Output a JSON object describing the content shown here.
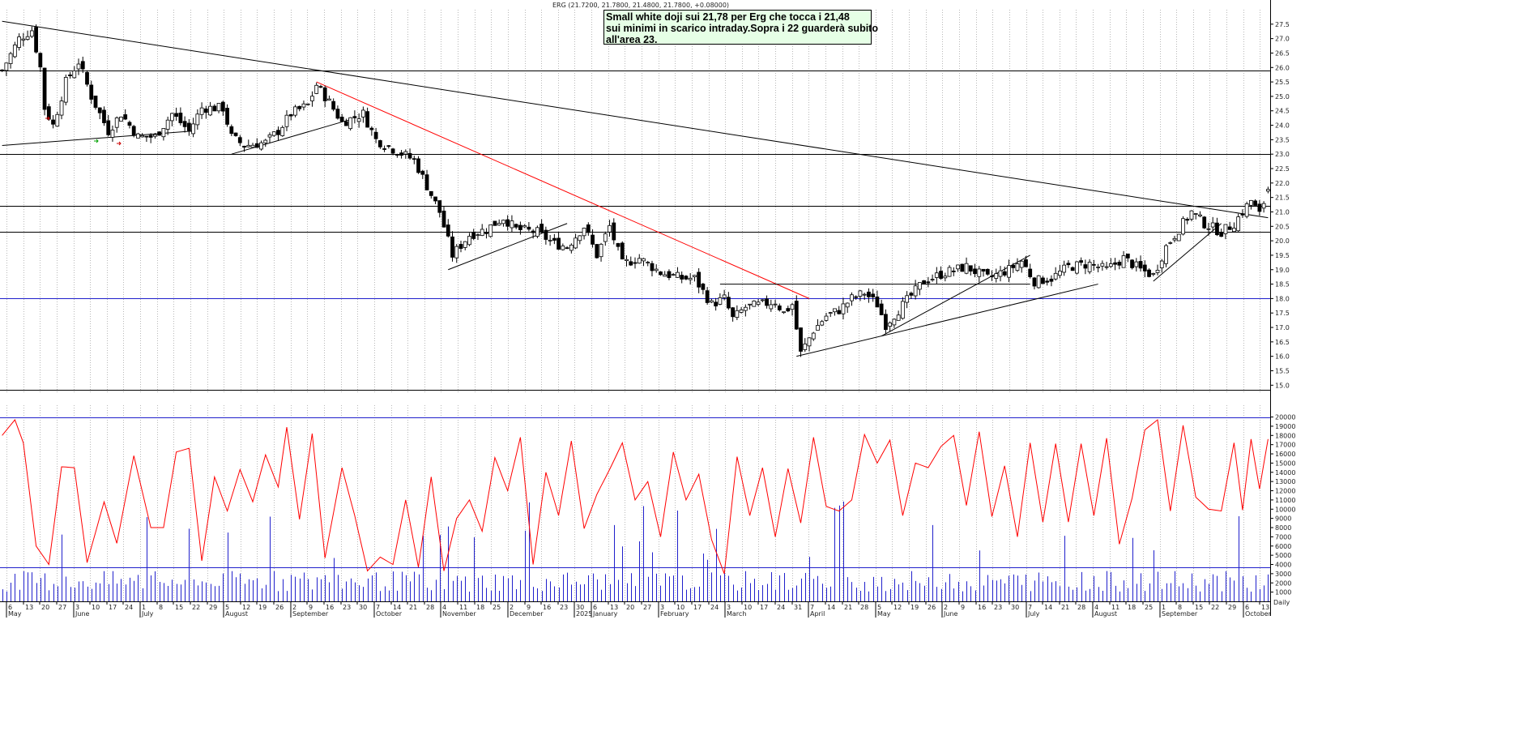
{
  "chart_data": {
    "type": "candlestick",
    "header": "ERG (21.7200, 21.7800, 21.4800, 21.7800, +0.08000)",
    "annotation": [
      "Small white doji sui 21,78 per Erg che tocca i 21,48",
      "sui minimi in scarico intraday.Sopra i 22 guarderà subito",
      "all'area 23."
    ],
    "price_axis": {
      "ylim": [
        14.7,
        28.0
      ],
      "ticks": [
        "15.0",
        "15.5",
        "16.0",
        "16.5",
        "17.0",
        "17.5",
        "18.0",
        "18.5",
        "19.0",
        "19.5",
        "20.0",
        "20.5",
        "21.0",
        "21.5",
        "22.0",
        "22.5",
        "23.0",
        "23.5",
        "24.0",
        "24.5",
        "25.0",
        "25.5",
        "26.0",
        "26.5",
        "27.0",
        "27.5"
      ]
    },
    "volume_axis": {
      "ylim": [
        0,
        20400
      ],
      "ticks": [
        "1000",
        "2000",
        "3000",
        "4000",
        "5000",
        "6000",
        "7000",
        "8000",
        "9000",
        "10000",
        "11000",
        "12000",
        "13000",
        "14000",
        "15000",
        "16000",
        "17000",
        "18000",
        "19000",
        "20000"
      ]
    },
    "x_axis": {
      "day_ticks": [
        "6",
        "13",
        "20",
        "27",
        "3",
        "10",
        "17",
        "24",
        "1",
        "8",
        "15",
        "22",
        "29",
        "5",
        "12",
        "19",
        "26",
        "2",
        "9",
        "16",
        "23",
        "30",
        "7",
        "14",
        "21",
        "28",
        "4",
        "11",
        "18",
        "25",
        "2",
        "9",
        "16",
        "23",
        "30",
        "6",
        "13",
        "20",
        "27",
        "3",
        "10",
        "17",
        "24",
        "3",
        "10",
        "17",
        "24",
        "31",
        "7",
        "14",
        "21",
        "28",
        "5",
        "12",
        "19",
        "26",
        "2",
        "9",
        "16",
        "23",
        "30",
        "7",
        "14",
        "21",
        "28",
        "4",
        "11",
        "18",
        "25",
        "1",
        "8",
        "15",
        "22",
        "29",
        "6",
        "13"
      ],
      "month_labels": [
        "May",
        "June",
        "July",
        "August",
        "September",
        "October",
        "November",
        "December",
        "2025",
        "January",
        "February",
        "March",
        "April",
        "May",
        "June",
        "July",
        "August",
        "September",
        "October"
      ],
      "unit_label": "Daily"
    },
    "horizontal_levels": [
      {
        "value": 25.9,
        "color": "#000000"
      },
      {
        "value": 23.0,
        "color": "#000000"
      },
      {
        "value": 21.2,
        "color": "#000000"
      },
      {
        "value": 20.3,
        "color": "#000000"
      },
      {
        "value": 18.0,
        "color": "#2020cc"
      },
      {
        "value": 14.85,
        "color": "#000000"
      }
    ],
    "volume_levels": [
      {
        "value": 20000,
        "color": "#2020cc"
      },
      {
        "value": 3700,
        "color": "#2020cc"
      }
    ],
    "trendlines": [
      {
        "from": [
          0,
          27.6
        ],
        "to": [
          298,
          20.8
        ],
        "color": "#000000"
      },
      {
        "from": [
          0,
          23.3
        ],
        "to": [
          45,
          23.8
        ],
        "color": "#000000"
      },
      {
        "from": [
          54,
          23.0
        ],
        "to": [
          82,
          24.2
        ],
        "color": "#000000"
      },
      {
        "from": [
          74,
          25.5
        ],
        "to": [
          190,
          18.0
        ],
        "color": "#ff0000"
      },
      {
        "from": [
          105,
          19.0
        ],
        "to": [
          133,
          20.6
        ],
        "color": "#000000"
      },
      {
        "from": [
          187,
          16.0
        ],
        "to": [
          258,
          18.5
        ],
        "color": "#000000"
      },
      {
        "from": [
          207,
          16.7
        ],
        "to": [
          242,
          19.5
        ],
        "color": "#000000"
      },
      {
        "from": [
          271,
          18.6
        ],
        "to": [
          287,
          20.6
        ],
        "color": "#000000"
      },
      {
        "from": [
          169,
          18.5
        ],
        "to": [
          242,
          18.5
        ],
        "color": "#000000"
      }
    ],
    "anchors": [
      [
        0,
        25.9
      ],
      [
        4,
        27.0
      ],
      [
        7,
        27.3
      ],
      [
        9,
        26.0
      ],
      [
        10,
        24.6
      ],
      [
        12,
        24.0
      ],
      [
        15,
        25.5
      ],
      [
        18,
        26.2
      ],
      [
        21,
        25.0
      ],
      [
        25,
        23.8
      ],
      [
        28,
        24.4
      ],
      [
        32,
        23.6
      ],
      [
        36,
        23.6
      ],
      [
        40,
        24.4
      ],
      [
        44,
        23.8
      ],
      [
        47,
        24.6
      ],
      [
        52,
        24.6
      ],
      [
        54,
        23.6
      ],
      [
        57,
        23.3
      ],
      [
        62,
        23.4
      ],
      [
        65,
        23.8
      ],
      [
        68,
        24.4
      ],
      [
        72,
        24.7
      ],
      [
        74,
        25.4
      ],
      [
        77,
        24.8
      ],
      [
        80,
        24.1
      ],
      [
        85,
        24.4
      ],
      [
        88,
        23.5
      ],
      [
        93,
        23.1
      ],
      [
        97,
        22.8
      ],
      [
        100,
        21.9
      ],
      [
        103,
        21.0
      ],
      [
        106,
        19.5
      ],
      [
        110,
        20.2
      ],
      [
        114,
        20.4
      ],
      [
        118,
        20.8
      ],
      [
        121,
        20.4
      ],
      [
        126,
        20.3
      ],
      [
        130,
        19.9
      ],
      [
        133,
        19.8
      ],
      [
        137,
        20.5
      ],
      [
        140,
        19.5
      ],
      [
        143,
        20.5
      ],
      [
        146,
        19.2
      ],
      [
        150,
        19.4
      ],
      [
        155,
        18.9
      ],
      [
        160,
        18.7
      ],
      [
        163,
        18.7
      ],
      [
        167,
        17.8
      ],
      [
        170,
        18.0
      ],
      [
        172,
        17.3
      ],
      [
        175,
        17.7
      ],
      [
        179,
        17.8
      ],
      [
        182,
        17.9
      ],
      [
        184,
        17.5
      ],
      [
        186,
        17.8
      ],
      [
        188,
        16.1
      ],
      [
        191,
        16.9
      ],
      [
        194,
        17.4
      ],
      [
        197,
        17.6
      ],
      [
        200,
        18.0
      ],
      [
        203,
        18.2
      ],
      [
        206,
        17.8
      ],
      [
        208,
        17.1
      ],
      [
        211,
        17.6
      ],
      [
        214,
        18.1
      ],
      [
        217,
        18.6
      ],
      [
        222,
        18.9
      ],
      [
        227,
        19.1
      ],
      [
        232,
        18.7
      ],
      [
        237,
        19.0
      ],
      [
        240,
        19.3
      ],
      [
        243,
        18.6
      ],
      [
        247,
        18.7
      ],
      [
        251,
        19.1
      ],
      [
        256,
        19.2
      ],
      [
        260,
        19.0
      ],
      [
        264,
        19.4
      ],
      [
        268,
        19.0
      ],
      [
        271,
        18.8
      ],
      [
        274,
        19.8
      ],
      [
        277,
        20.4
      ],
      [
        280,
        21.0
      ],
      [
        283,
        20.6
      ],
      [
        287,
        20.3
      ],
      [
        290,
        20.6
      ],
      [
        292,
        21.0
      ],
      [
        294,
        21.4
      ],
      [
        296,
        20.9
      ],
      [
        298,
        21.78
      ]
    ],
    "volume_anchors": [
      [
        0,
        18000
      ],
      [
        3,
        19700
      ],
      [
        5,
        17200
      ],
      [
        8,
        6000
      ],
      [
        11,
        4000
      ],
      [
        14,
        14600
      ],
      [
        17,
        14500
      ],
      [
        20,
        4200
      ],
      [
        24,
        10800
      ],
      [
        27,
        6300
      ],
      [
        31,
        15800
      ],
      [
        35,
        8000
      ],
      [
        38,
        8000
      ],
      [
        41,
        16200
      ],
      [
        44,
        16600
      ],
      [
        47,
        4400
      ],
      [
        50,
        13500
      ],
      [
        53,
        9800
      ],
      [
        56,
        14300
      ],
      [
        59,
        10800
      ],
      [
        62,
        15900
      ],
      [
        65,
        12400
      ],
      [
        67,
        18900
      ],
      [
        70,
        8900
      ],
      [
        73,
        18200
      ],
      [
        76,
        4700
      ],
      [
        80,
        14500
      ],
      [
        83,
        9300
      ],
      [
        86,
        3300
      ],
      [
        89,
        4800
      ],
      [
        92,
        4000
      ],
      [
        95,
        11000
      ],
      [
        98,
        3700
      ],
      [
        101,
        13500
      ],
      [
        104,
        3300
      ],
      [
        107,
        9000
      ],
      [
        110,
        11000
      ],
      [
        113,
        7600
      ],
      [
        116,
        15600
      ],
      [
        119,
        12000
      ],
      [
        122,
        17800
      ],
      [
        125,
        4000
      ],
      [
        128,
        14000
      ],
      [
        131,
        9300
      ],
      [
        134,
        17400
      ],
      [
        137,
        7900
      ],
      [
        140,
        11600
      ],
      [
        143,
        14300
      ],
      [
        146,
        17200
      ],
      [
        149,
        11000
      ],
      [
        152,
        13000
      ],
      [
        155,
        7000
      ],
      [
        158,
        16200
      ],
      [
        161,
        11000
      ],
      [
        164,
        13800
      ],
      [
        167,
        6700
      ],
      [
        170,
        3000
      ],
      [
        173,
        15700
      ],
      [
        176,
        9300
      ],
      [
        179,
        14500
      ],
      [
        182,
        7000
      ],
      [
        185,
        14400
      ],
      [
        188,
        8500
      ],
      [
        191,
        17800
      ],
      [
        194,
        10300
      ],
      [
        197,
        9800
      ],
      [
        200,
        11000
      ],
      [
        203,
        18100
      ],
      [
        206,
        15000
      ],
      [
        209,
        17500
      ],
      [
        212,
        9300
      ],
      [
        215,
        15000
      ],
      [
        218,
        14500
      ],
      [
        221,
        16800
      ],
      [
        224,
        18000
      ],
      [
        227,
        10400
      ],
      [
        230,
        18400
      ],
      [
        233,
        9200
      ],
      [
        236,
        14700
      ],
      [
        239,
        7000
      ],
      [
        242,
        17200
      ],
      [
        245,
        8600
      ],
      [
        248,
        17100
      ],
      [
        251,
        8600
      ],
      [
        254,
        17100
      ],
      [
        257,
        9300
      ],
      [
        260,
        17700
      ],
      [
        263,
        6200
      ],
      [
        266,
        11200
      ],
      [
        269,
        18600
      ],
      [
        272,
        19700
      ],
      [
        275,
        9800
      ],
      [
        278,
        19100
      ],
      [
        281,
        11300
      ],
      [
        284,
        10000
      ],
      [
        287,
        9800
      ],
      [
        290,
        17200
      ],
      [
        292,
        9900
      ],
      [
        294,
        17600
      ],
      [
        296,
        12200
      ],
      [
        298,
        17600
      ]
    ],
    "volume_bars_baseline": 3000
  }
}
